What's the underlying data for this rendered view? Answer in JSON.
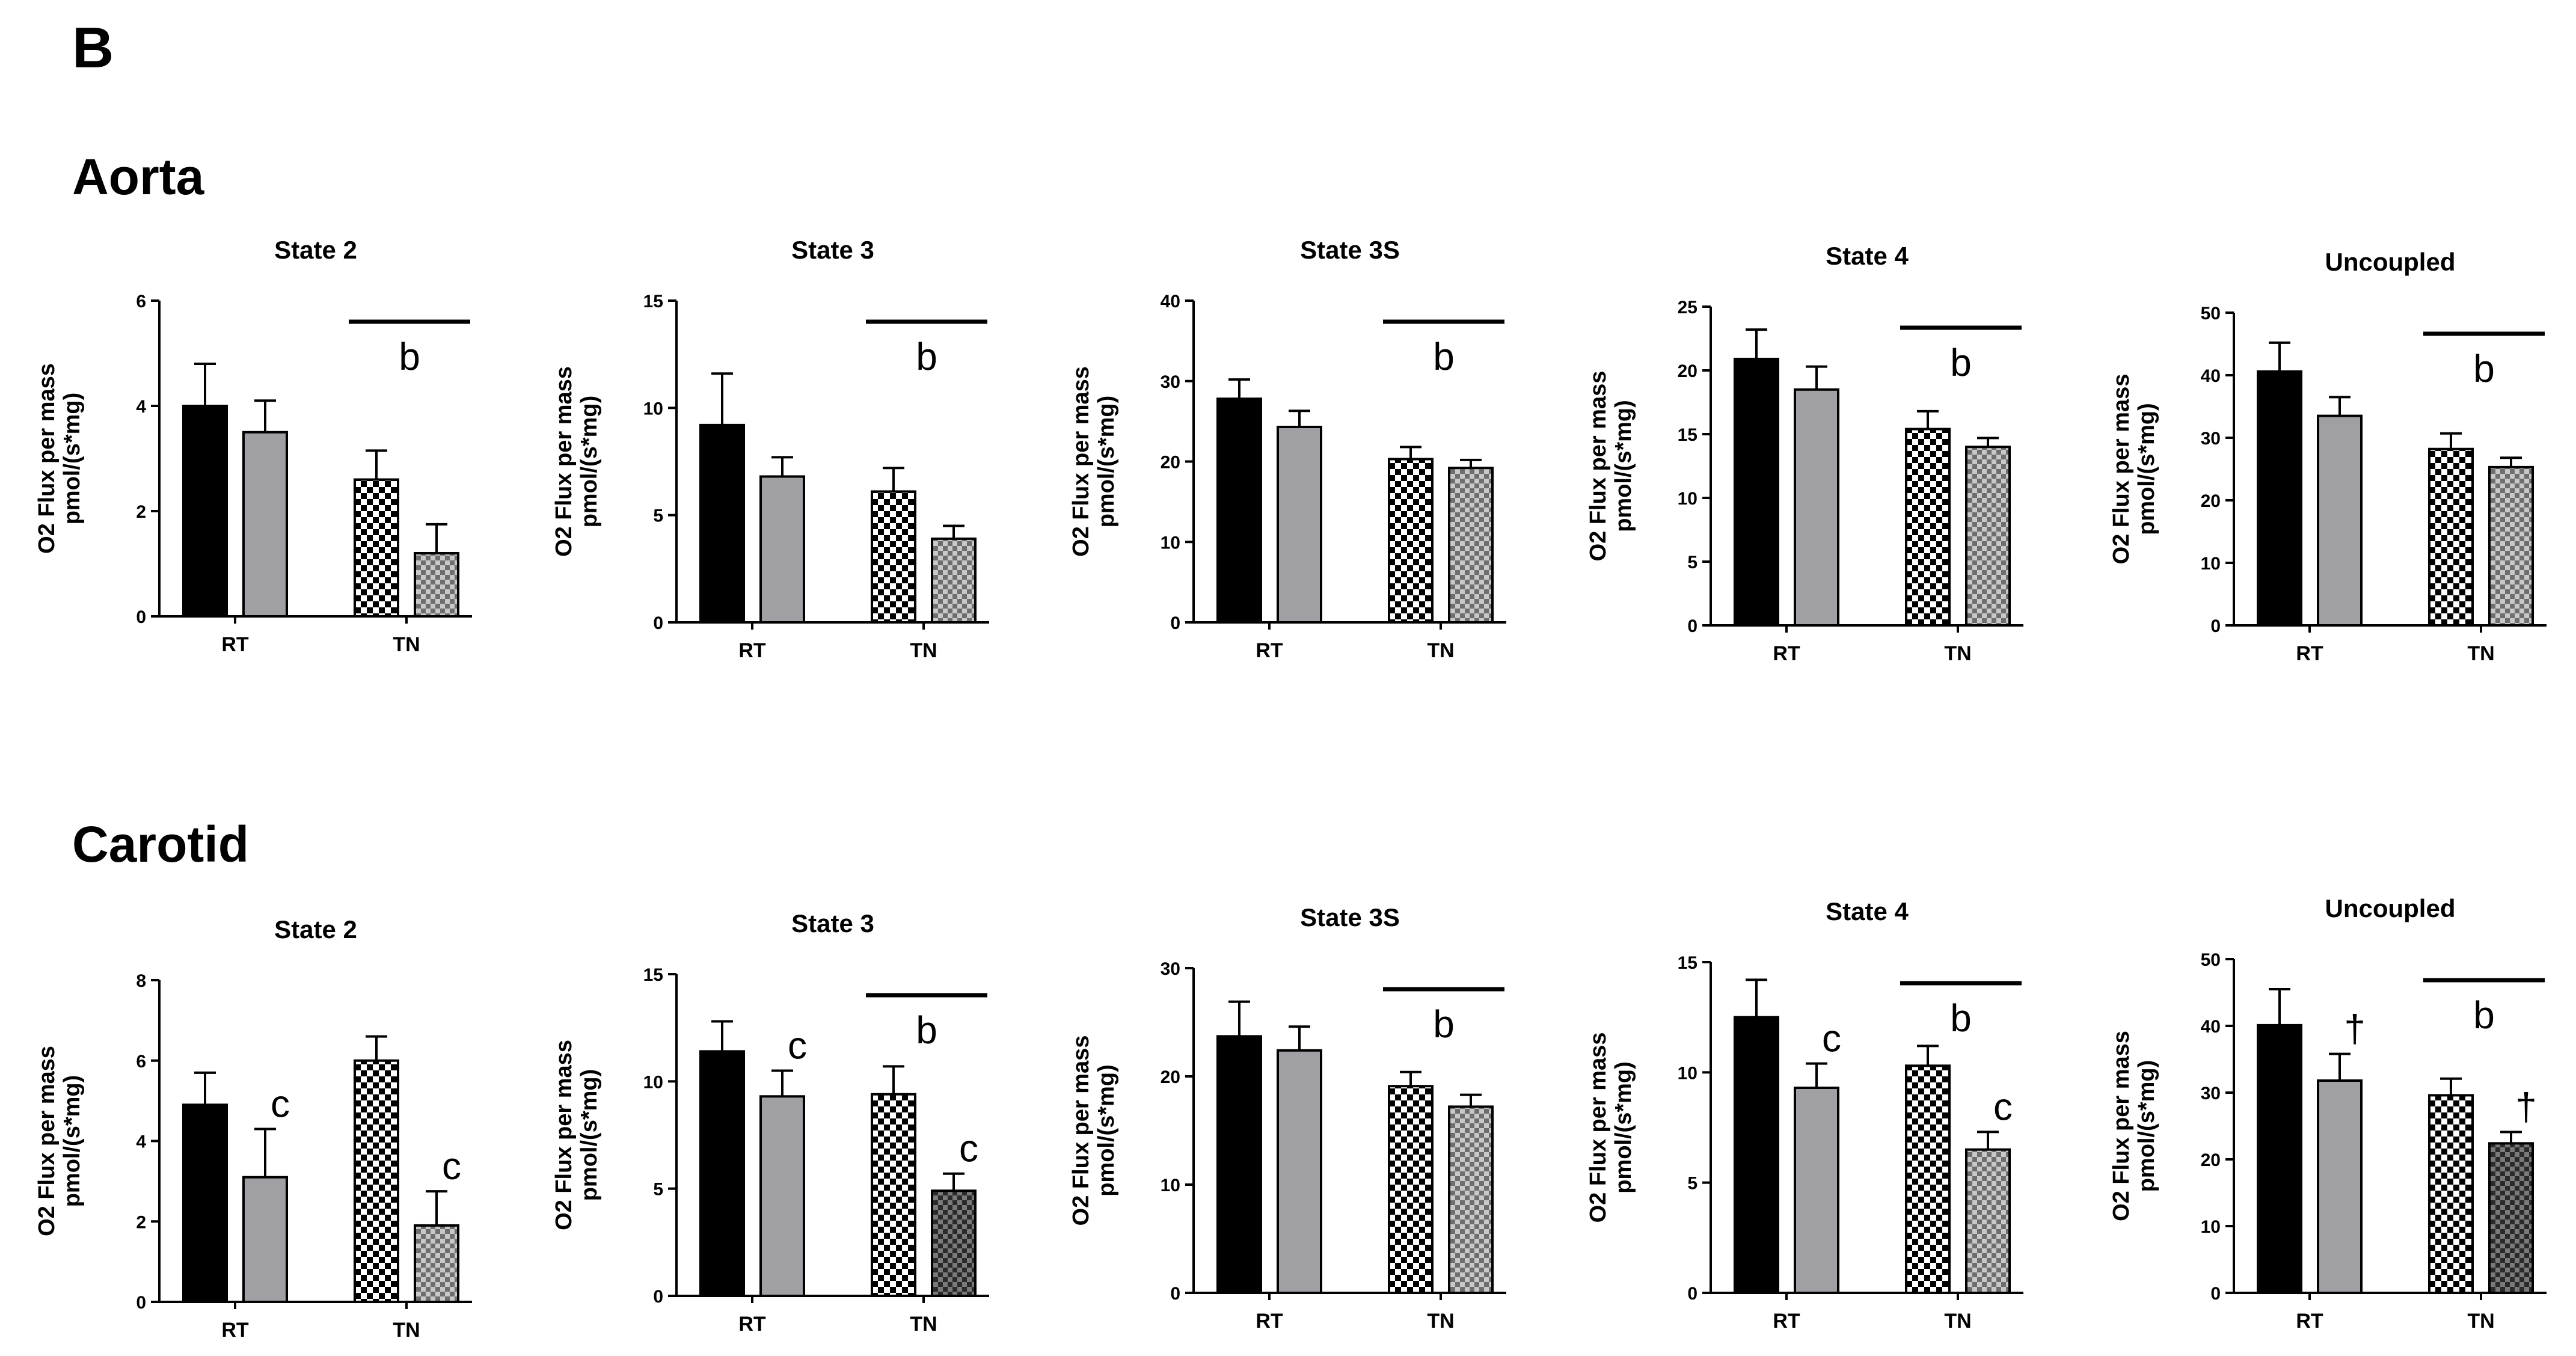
{
  "panel_label": "B",
  "rows": [
    "Aorta",
    "Carotid"
  ],
  "colors": {
    "rt_control": "#000000",
    "rt_treated": "#a0a0a4",
    "tn_control_pattern": "checker-black-white",
    "tn_treated_pattern": "checker-gray"
  },
  "chart_data": [
    {
      "type": "bar",
      "group": "Aorta",
      "title": "State 2",
      "ylabel": [
        "O2 Flux per mass",
        "pmol/(s*mg)"
      ],
      "ylim": [
        0,
        6
      ],
      "yticks": [
        0,
        2,
        4,
        6
      ],
      "categories": [
        "RT",
        "TN"
      ],
      "series": [
        {
          "values": [
            4.0,
            3.5
          ],
          "errors": [
            0.8,
            0.6
          ]
        },
        {
          "values": [
            2.6,
            1.2
          ],
          "errors": [
            0.55,
            0.55
          ]
        }
      ],
      "annotations": [
        {
          "text": "b",
          "over": "TN",
          "bar": true
        }
      ]
    },
    {
      "type": "bar",
      "group": "Aorta",
      "title": "State 3",
      "ylabel": [
        "O2 Flux per mass",
        "pmol/(s*mg)"
      ],
      "ylim": [
        0,
        15
      ],
      "yticks": [
        0,
        5,
        10,
        15
      ],
      "categories": [
        "RT",
        "TN"
      ],
      "series": [
        {
          "values": [
            9.2,
            6.8
          ],
          "errors": [
            2.4,
            0.9
          ]
        },
        {
          "values": [
            6.1,
            3.9
          ],
          "errors": [
            1.1,
            0.6
          ]
        }
      ],
      "annotations": [
        {
          "text": "b",
          "over": "TN",
          "bar": true
        }
      ]
    },
    {
      "type": "bar",
      "group": "Aorta",
      "title": "State 3S",
      "ylabel": [
        "O2 Flux per mass",
        "pmol/(s*mg)"
      ],
      "ylim": [
        0,
        40
      ],
      "yticks": [
        0,
        10,
        20,
        30,
        40
      ],
      "categories": [
        "RT",
        "TN"
      ],
      "series": [
        {
          "values": [
            27.8,
            24.3
          ],
          "errors": [
            2.4,
            2.0
          ]
        },
        {
          "values": [
            20.3,
            19.2
          ],
          "errors": [
            1.5,
            1.0
          ]
        }
      ],
      "annotations": [
        {
          "text": "b",
          "over": "TN",
          "bar": true
        }
      ]
    },
    {
      "type": "bar",
      "group": "Aorta",
      "title": "State 4",
      "ylabel": [
        "O2 Flux per mass",
        "pmol/(s*mg)"
      ],
      "ylim": [
        0,
        25
      ],
      "yticks": [
        0,
        5,
        10,
        15,
        20,
        25
      ],
      "categories": [
        "RT",
        "TN"
      ],
      "series": [
        {
          "values": [
            20.9,
            18.5
          ],
          "errors": [
            2.3,
            1.8
          ]
        },
        {
          "values": [
            15.4,
            14.0
          ],
          "errors": [
            1.4,
            0.7
          ]
        }
      ],
      "annotations": [
        {
          "text": "b",
          "over": "TN",
          "bar": true
        }
      ]
    },
    {
      "type": "bar",
      "group": "Aorta",
      "title": "Uncoupled",
      "ylabel": [
        "O2 Flux per mass",
        "pmol/(s*mg)"
      ],
      "ylim": [
        0,
        50
      ],
      "yticks": [
        0,
        10,
        20,
        30,
        40,
        50
      ],
      "categories": [
        "RT",
        "TN"
      ],
      "series": [
        {
          "values": [
            40.6,
            33.5
          ],
          "errors": [
            4.6,
            3.0
          ]
        },
        {
          "values": [
            28.2,
            25.3
          ],
          "errors": [
            2.5,
            1.5
          ]
        }
      ],
      "annotations": [
        {
          "text": "b",
          "over": "TN",
          "bar": true
        }
      ]
    },
    {
      "type": "bar",
      "group": "Carotid",
      "title": "State 2",
      "ylabel": [
        "O2 Flux per mass",
        "pmol/(s*mg)"
      ],
      "ylim": [
        0,
        8
      ],
      "yticks": [
        0,
        2,
        4,
        6,
        8
      ],
      "categories": [
        "RT",
        "TN"
      ],
      "series": [
        {
          "values": [
            4.9,
            3.1
          ],
          "errors": [
            0.8,
            1.2
          ]
        },
        {
          "values": [
            6.0,
            1.9
          ],
          "errors": [
            0.6,
            0.85
          ]
        }
      ],
      "annotations": [
        {
          "text": "c",
          "over": "RT-treated",
          "bar": false
        },
        {
          "text": "c",
          "over": "TN-treated",
          "bar": false
        }
      ]
    },
    {
      "type": "bar",
      "group": "Carotid",
      "title": "State 3",
      "ylabel": [
        "O2 Flux per mass",
        "pmol/(s*mg)"
      ],
      "ylim": [
        0,
        15
      ],
      "yticks": [
        0,
        5,
        10,
        15
      ],
      "categories": [
        "RT",
        "TN"
      ],
      "series": [
        {
          "values": [
            11.4,
            9.3
          ],
          "errors": [
            1.4,
            1.2
          ]
        },
        {
          "values": [
            9.4,
            4.9
          ],
          "errors": [
            1.3,
            0.8
          ]
        }
      ],
      "annotations": [
        {
          "text": "c",
          "over": "RT-treated",
          "bar": false
        },
        {
          "text": "b",
          "over": "TN",
          "bar": true
        },
        {
          "text": "c",
          "over": "TN-treated",
          "bar": false
        }
      ]
    },
    {
      "type": "bar",
      "group": "Carotid",
      "title": "State 3S",
      "ylabel": [
        "O2 Flux per mass",
        "pmol/(s*mg)"
      ],
      "ylim": [
        0,
        30
      ],
      "yticks": [
        0,
        10,
        20,
        30
      ],
      "categories": [
        "RT",
        "TN"
      ],
      "series": [
        {
          "values": [
            23.7,
            22.4
          ],
          "errors": [
            3.2,
            2.2
          ]
        },
        {
          "values": [
            19.1,
            17.2
          ],
          "errors": [
            1.3,
            1.1
          ]
        }
      ],
      "annotations": [
        {
          "text": "b",
          "over": "TN",
          "bar": true
        }
      ]
    },
    {
      "type": "bar",
      "group": "Carotid",
      "title": "State 4",
      "ylabel": [
        "O2 Flux per mass",
        "pmol/(s*mg)"
      ],
      "ylim": [
        0,
        15
      ],
      "yticks": [
        0,
        5,
        10,
        15
      ],
      "categories": [
        "RT",
        "TN"
      ],
      "series": [
        {
          "values": [
            12.5,
            9.3
          ],
          "errors": [
            1.7,
            1.1
          ]
        },
        {
          "values": [
            10.3,
            6.5
          ],
          "errors": [
            0.9,
            0.8
          ]
        }
      ],
      "annotations": [
        {
          "text": "c",
          "over": "RT-treated",
          "bar": false
        },
        {
          "text": "b",
          "over": "TN",
          "bar": true
        },
        {
          "text": "c",
          "over": "TN-treated",
          "bar": false
        }
      ]
    },
    {
      "type": "bar",
      "group": "Carotid",
      "title": "Uncoupled",
      "ylabel": [
        "O2 Flux per mass",
        "pmol/(s*mg)"
      ],
      "ylim": [
        0,
        50
      ],
      "yticks": [
        0,
        10,
        20,
        30,
        40,
        50
      ],
      "categories": [
        "RT",
        "TN"
      ],
      "series": [
        {
          "values": [
            40.1,
            31.8
          ],
          "errors": [
            5.4,
            4.0
          ]
        },
        {
          "values": [
            29.6,
            22.4
          ],
          "errors": [
            2.5,
            1.7
          ]
        }
      ],
      "annotations": [
        {
          "text": "†",
          "over": "RT-treated",
          "bar": false
        },
        {
          "text": "b",
          "over": "TN",
          "bar": true
        },
        {
          "text": "†",
          "over": "TN-treated",
          "bar": false
        }
      ]
    }
  ]
}
